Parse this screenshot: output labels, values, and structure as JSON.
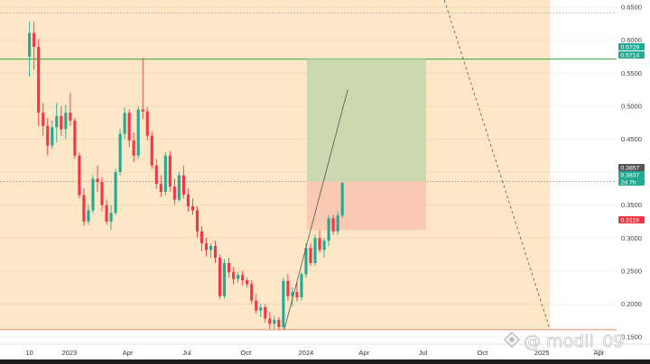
{
  "watermark": {
    "text": "@ modii_09",
    "icon": "tradingview-diamond-icon"
  },
  "colors": {
    "up": "#22ab94",
    "down": "#f23645",
    "zone_bg": "#fde7c6",
    "range_line": "#4caf50",
    "profit_zone": "#c8d8b0",
    "loss_zone": "#fbc8b2",
    "projection": "#555555"
  },
  "chart_data": {
    "type": "candlestick",
    "timeframe_countdown": "2d 7h",
    "price_scale": {
      "ticks": [
        "0.6500",
        "0.6000",
        "0.5500",
        "0.5000",
        "0.4500",
        "0.4000",
        "0.3500",
        "0.3000",
        "0.2500",
        "0.2000",
        "0.1500"
      ],
      "ylim": [
        0.139,
        0.661
      ]
    },
    "time_axis": {
      "labels": [
        {
          "text": "10",
          "week": 0.0
        },
        {
          "text": "2023",
          "week": 8.8
        },
        {
          "text": "Apr",
          "week": 21.7
        },
        {
          "text": "Jul",
          "week": 34.7
        },
        {
          "text": "Oct",
          "week": 47.7
        },
        {
          "text": "2024",
          "week": 61.0
        },
        {
          "text": "Apr",
          "week": 73.8
        },
        {
          "text": "Jul",
          "week": 86.8
        },
        {
          "text": "Oct",
          "week": 99.9
        },
        {
          "text": "2025",
          "week": 113.0
        },
        {
          "text": "Apr",
          "week": 125.6
        }
      ],
      "xlim": [
        -6.5,
        129.5
      ]
    },
    "horizontal_lines": [
      {
        "name": "Range high",
        "price": 0.5714,
        "style": "solid",
        "color": "#4caf50"
      },
      {
        "name": "Range low",
        "price": 0.161,
        "style": "solid",
        "color": "#e8a08a"
      },
      {
        "name": "Top",
        "price": 0.6415,
        "style": "dotted",
        "color": "#999999"
      }
    ],
    "price_tags": [
      {
        "value": "0.5729",
        "color": "#22ab94"
      },
      {
        "value": "0.5714",
        "color": "#22ab94"
      },
      {
        "value": "0.3857",
        "color": "#555555"
      },
      {
        "value": "0.3837",
        "color": "#22ab94"
      },
      {
        "value": "2d 7h",
        "color": "#22ab94"
      },
      {
        "value": "0.3119",
        "color": "#f23645"
      }
    ],
    "position": {
      "type": "long",
      "entry": 0.3857,
      "target": 0.5714,
      "stop": 0.3119,
      "week_start": 61.2,
      "week_end": 87.5
    },
    "projection_lines": [
      {
        "style": "solid",
        "points": [
          [
            56.2,
            0.161
          ],
          [
            70.2,
            0.525
          ]
        ]
      },
      {
        "style": "dashed",
        "points": [
          [
            91.5,
            0.661
          ],
          [
            114.8,
            0.161
          ]
        ]
      }
    ],
    "candles": [
      [
        0.575,
        0.628,
        0.545,
        0.611
      ],
      [
        0.611,
        0.628,
        0.555,
        0.59
      ],
      [
        0.59,
        0.602,
        0.47,
        0.49
      ],
      [
        0.49,
        0.505,
        0.455,
        0.47
      ],
      [
        0.47,
        0.482,
        0.425,
        0.44
      ],
      [
        0.44,
        0.478,
        0.435,
        0.468
      ],
      [
        0.468,
        0.505,
        0.445,
        0.485
      ],
      [
        0.485,
        0.5,
        0.455,
        0.465
      ],
      [
        0.465,
        0.502,
        0.45,
        0.49
      ],
      [
        0.49,
        0.52,
        0.47,
        0.478
      ],
      [
        0.478,
        0.482,
        0.42,
        0.425
      ],
      [
        0.425,
        0.43,
        0.36,
        0.365
      ],
      [
        0.365,
        0.375,
        0.318,
        0.325
      ],
      [
        0.325,
        0.35,
        0.32,
        0.342
      ],
      [
        0.342,
        0.395,
        0.338,
        0.39
      ],
      [
        0.39,
        0.41,
        0.37,
        0.385
      ],
      [
        0.385,
        0.392,
        0.34,
        0.35
      ],
      [
        0.35,
        0.358,
        0.32,
        0.325
      ],
      [
        0.325,
        0.35,
        0.312,
        0.338
      ],
      [
        0.338,
        0.405,
        0.335,
        0.4
      ],
      [
        0.4,
        0.465,
        0.395,
        0.458
      ],
      [
        0.458,
        0.498,
        0.45,
        0.49
      ],
      [
        0.49,
        0.495,
        0.438,
        0.448
      ],
      [
        0.448,
        0.46,
        0.415,
        0.425
      ],
      [
        0.425,
        0.5,
        0.42,
        0.495
      ],
      [
        0.495,
        0.573,
        0.48,
        0.492
      ],
      [
        0.492,
        0.498,
        0.448,
        0.455
      ],
      [
        0.455,
        0.462,
        0.405,
        0.41
      ],
      [
        0.41,
        0.42,
        0.375,
        0.382
      ],
      [
        0.382,
        0.395,
        0.362,
        0.37
      ],
      [
        0.37,
        0.43,
        0.365,
        0.425
      ],
      [
        0.425,
        0.432,
        0.37,
        0.378
      ],
      [
        0.378,
        0.39,
        0.35,
        0.358
      ],
      [
        0.358,
        0.4,
        0.355,
        0.395
      ],
      [
        0.395,
        0.41,
        0.36,
        0.366
      ],
      [
        0.366,
        0.375,
        0.34,
        0.348
      ],
      [
        0.348,
        0.36,
        0.335,
        0.342
      ],
      [
        0.342,
        0.348,
        0.3,
        0.31
      ],
      [
        0.31,
        0.318,
        0.28,
        0.292
      ],
      [
        0.292,
        0.3,
        0.272,
        0.282
      ],
      [
        0.282,
        0.292,
        0.27,
        0.288
      ],
      [
        0.288,
        0.296,
        0.262,
        0.27
      ],
      [
        0.27,
        0.275,
        0.208,
        0.212
      ],
      [
        0.212,
        0.268,
        0.208,
        0.262
      ],
      [
        0.262,
        0.27,
        0.24,
        0.248
      ],
      [
        0.248,
        0.256,
        0.23,
        0.238
      ],
      [
        0.238,
        0.248,
        0.232,
        0.244
      ],
      [
        0.244,
        0.25,
        0.228,
        0.236
      ],
      [
        0.236,
        0.24,
        0.225,
        0.23
      ],
      [
        0.23,
        0.236,
        0.2,
        0.205
      ],
      [
        0.205,
        0.215,
        0.185,
        0.19
      ],
      [
        0.19,
        0.2,
        0.18,
        0.195
      ],
      [
        0.195,
        0.2,
        0.172,
        0.178
      ],
      [
        0.178,
        0.188,
        0.162,
        0.17
      ],
      [
        0.17,
        0.182,
        0.162,
        0.176
      ],
      [
        0.176,
        0.18,
        0.16,
        0.165
      ],
      [
        0.165,
        0.24,
        0.162,
        0.235
      ],
      [
        0.235,
        0.245,
        0.205,
        0.212
      ],
      [
        0.212,
        0.225,
        0.196,
        0.218
      ],
      [
        0.218,
        0.232,
        0.204,
        0.21
      ],
      [
        0.21,
        0.248,
        0.205,
        0.245
      ],
      [
        0.245,
        0.292,
        0.24,
        0.285
      ],
      [
        0.285,
        0.292,
        0.258,
        0.262
      ],
      [
        0.262,
        0.305,
        0.258,
        0.3
      ],
      [
        0.3,
        0.312,
        0.278,
        0.282
      ],
      [
        0.282,
        0.3,
        0.27,
        0.296
      ],
      [
        0.296,
        0.335,
        0.288,
        0.33
      ],
      [
        0.33,
        0.335,
        0.305,
        0.31
      ],
      [
        0.31,
        0.34,
        0.305,
        0.334
      ],
      [
        0.334,
        0.385,
        0.33,
        0.3837
      ]
    ]
  }
}
